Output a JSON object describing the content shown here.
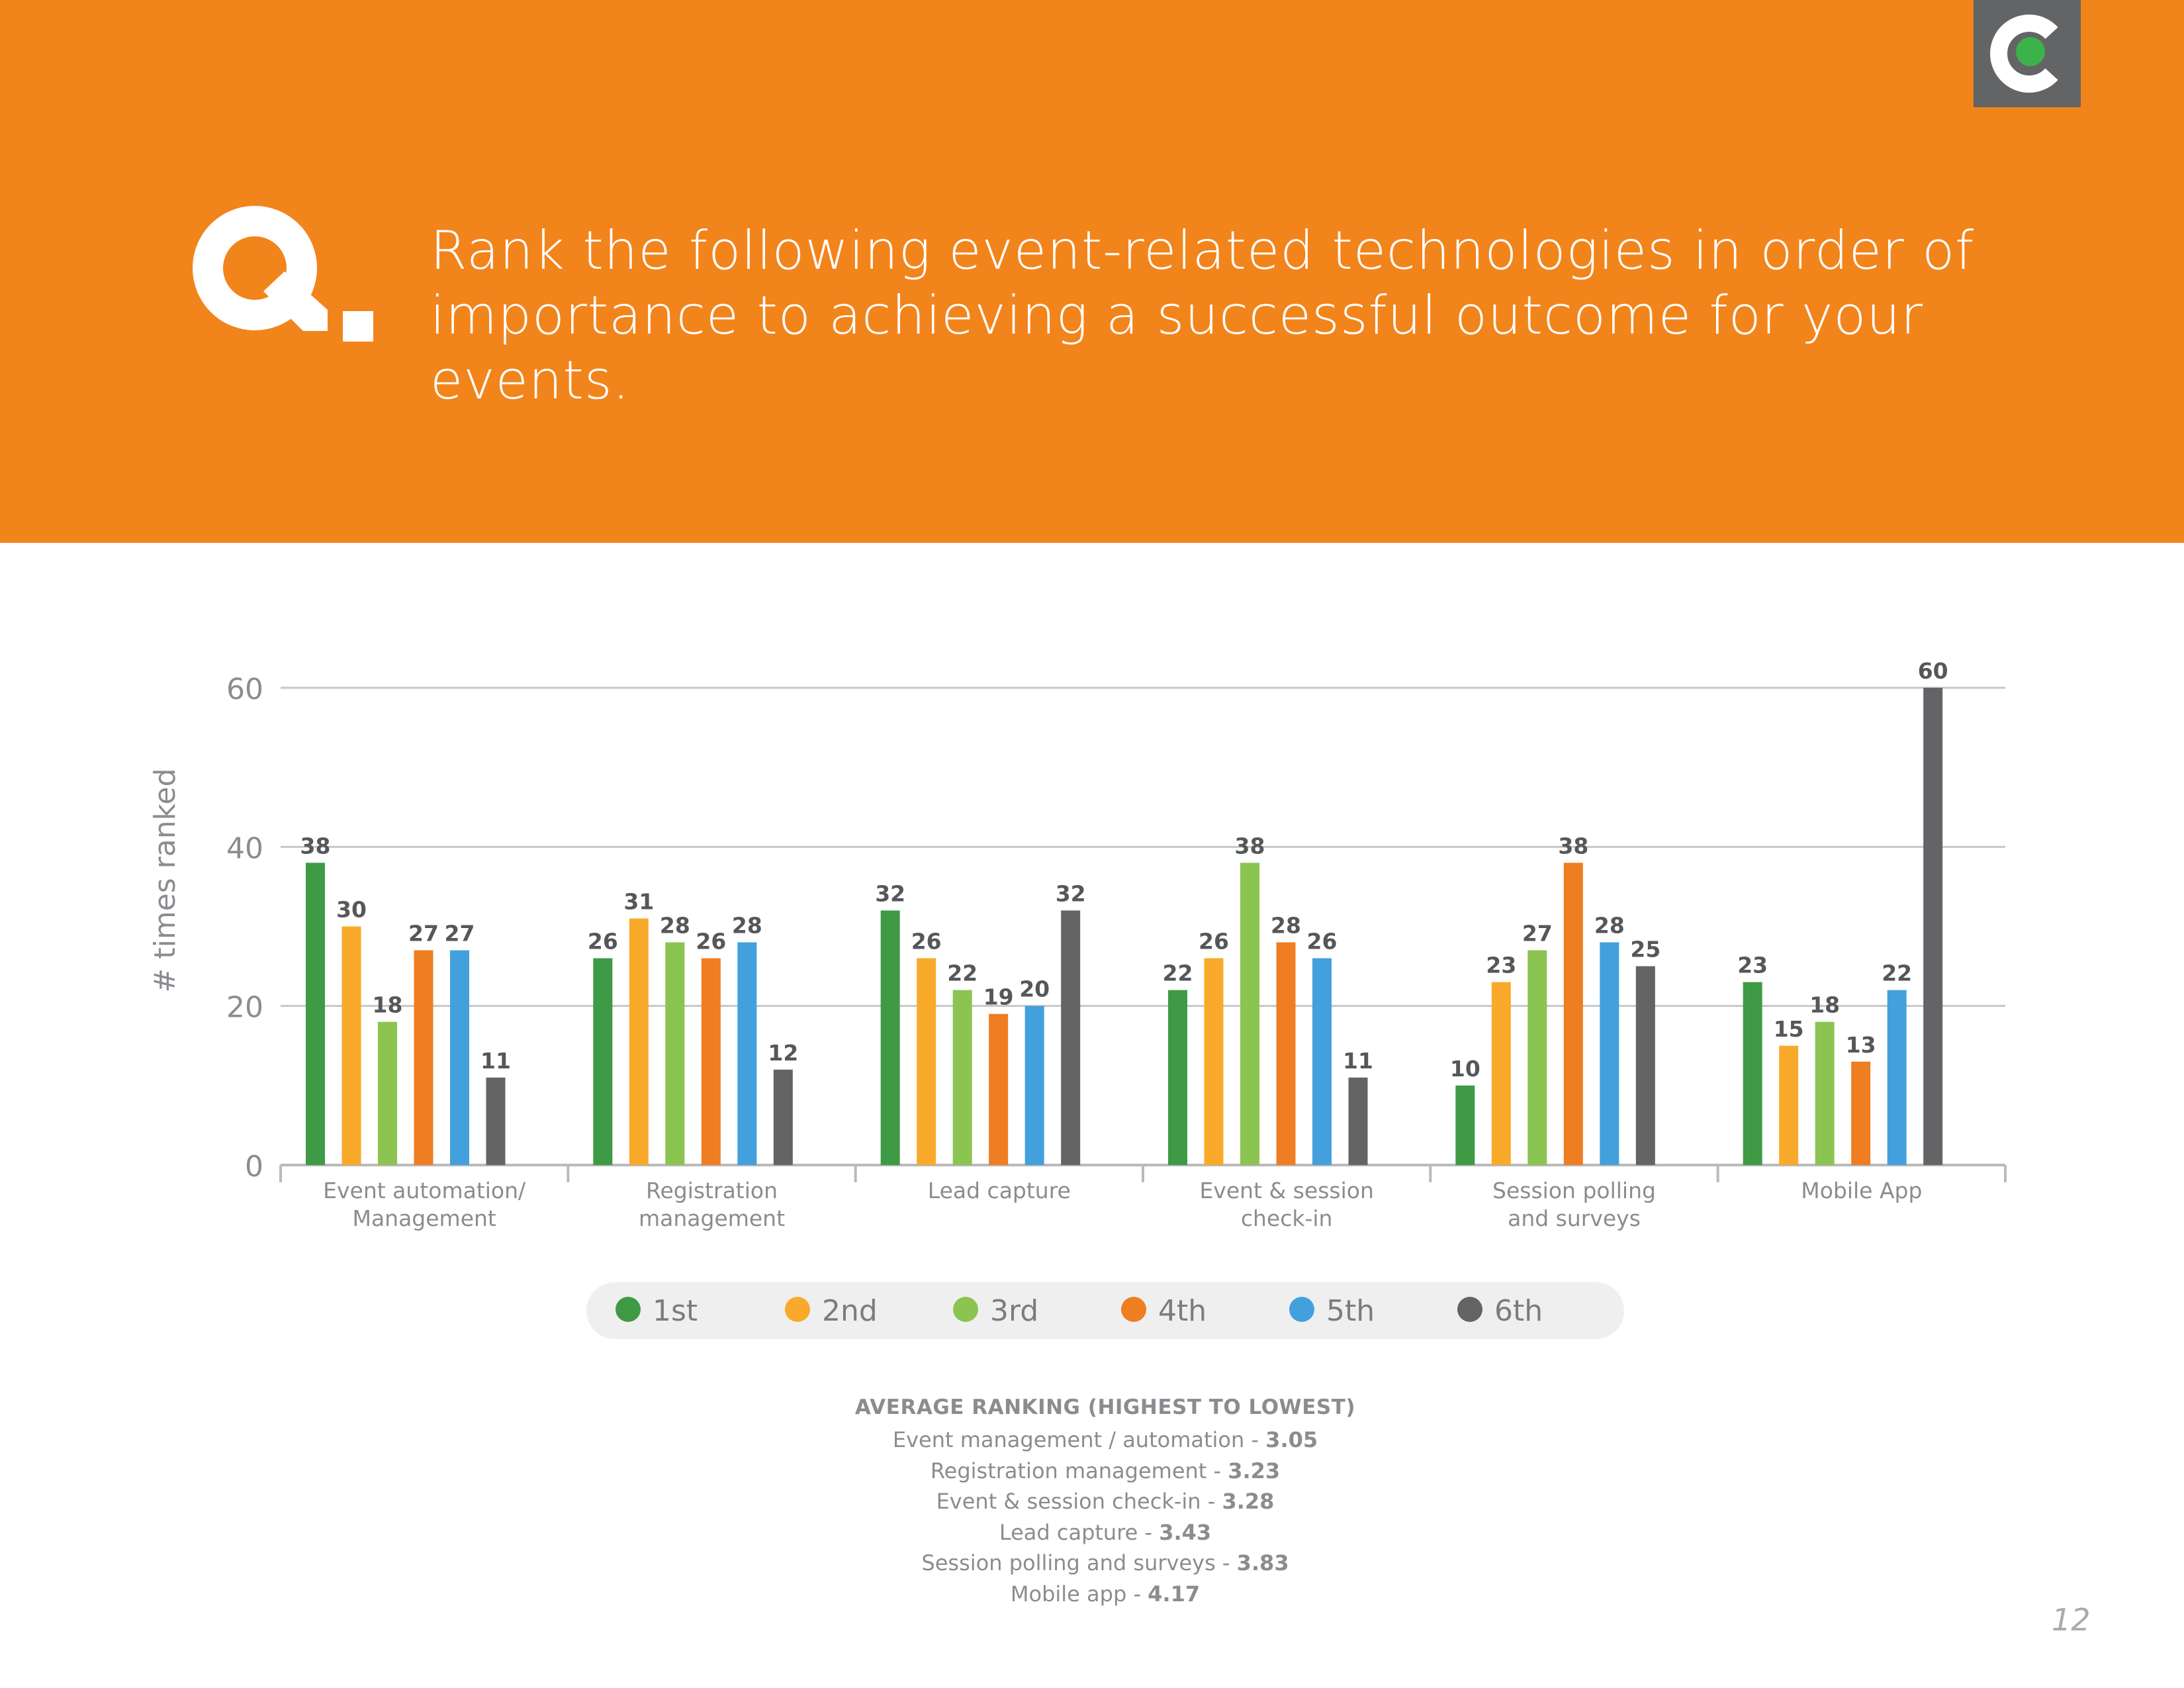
{
  "header": {
    "question_letter": "Q.",
    "question_text": "Rank the following event-related technologies in order of importance to achieving a successful outcome for your events."
  },
  "logo": {
    "icon": "cvent-c-logo-icon",
    "box_color": "#636466",
    "dot_color": "#3bb24a"
  },
  "colors": {
    "header_bg": "#f2841c",
    "1st": "#3f9a46",
    "2nd": "#f9aa2a",
    "3rd": "#8bc450",
    "4th": "#ef7d22",
    "5th": "#43a0dc",
    "6th": "#636466"
  },
  "chart_data": {
    "type": "bar",
    "title": "",
    "xlabel": "",
    "ylabel": "# times ranked",
    "ylim": [
      0,
      60
    ],
    "yticks": [
      0,
      20,
      40,
      60
    ],
    "grid": true,
    "categories": [
      [
        "Event automation/",
        "Management"
      ],
      [
        "Registration",
        "management"
      ],
      [
        "Lead capture"
      ],
      [
        "Event & session",
        "check-in"
      ],
      [
        "Session polling",
        "and surveys"
      ],
      [
        "Mobile App"
      ]
    ],
    "series": [
      {
        "name": "1st",
        "color": "#3f9a46",
        "values": [
          38,
          26,
          32,
          22,
          10,
          23
        ]
      },
      {
        "name": "2nd",
        "color": "#f9aa2a",
        "values": [
          30,
          31,
          26,
          26,
          23,
          15
        ]
      },
      {
        "name": "3rd",
        "color": "#8bc450",
        "values": [
          18,
          28,
          22,
          38,
          27,
          18
        ]
      },
      {
        "name": "4th",
        "color": "#ef7d22",
        "values": [
          27,
          26,
          19,
          28,
          38,
          13
        ]
      },
      {
        "name": "5th",
        "color": "#43a0dc",
        "values": [
          27,
          28,
          20,
          26,
          28,
          22
        ]
      },
      {
        "name": "6th",
        "color": "#636466",
        "values": [
          11,
          12,
          32,
          11,
          25,
          60
        ]
      }
    ],
    "legend": "bottom-center"
  },
  "averages": {
    "title": "AVERAGE RANKING (HIGHEST TO LOWEST)",
    "items": [
      {
        "label": "Event management / automation - ",
        "value": "3.05"
      },
      {
        "label": "Registration management - ",
        "value": "3.23"
      },
      {
        "label": "Event & session check-in - ",
        "value": "3.28"
      },
      {
        "label": "Lead capture - ",
        "value": "3.43"
      },
      {
        "label": "Session polling and surveys - ",
        "value": "3.83"
      },
      {
        "label": "Mobile app - ",
        "value": "4.17"
      }
    ]
  },
  "page": {
    "number": "12"
  }
}
